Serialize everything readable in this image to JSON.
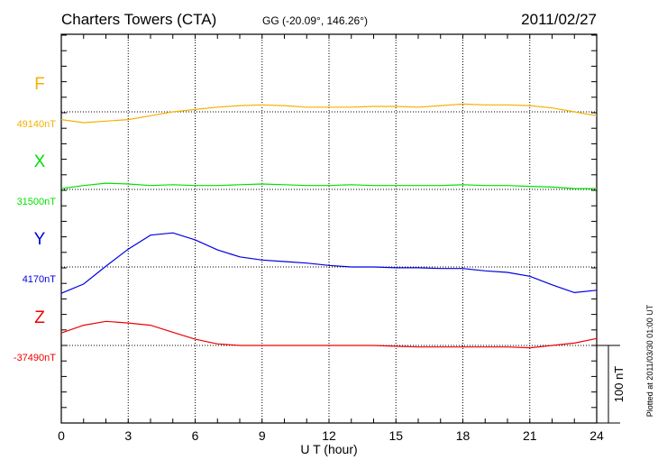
{
  "chart_data": {
    "type": "line",
    "title": "Charters Towers (CTA)",
    "subtitle": "GG (-20.09°, 146.26°)",
    "date": "2011/02/27",
    "xlabel": "U T (hour)",
    "xlim": [
      0,
      24
    ],
    "xticks": [
      "0",
      "3",
      "6",
      "9",
      "12",
      "15",
      "18",
      "21",
      "24"
    ],
    "scale_label": "100 nT",
    "plotted_note": "Plotted at 2011/03/30 01:00 UT",
    "grid": true,
    "x": [
      0,
      1,
      2,
      3,
      4,
      5,
      6,
      7,
      8,
      9,
      10,
      11,
      12,
      13,
      14,
      15,
      16,
      17,
      18,
      19,
      20,
      21,
      22,
      23,
      24
    ],
    "series": [
      {
        "name": "F",
        "baseline_label": "49140nT",
        "color": "#f5b000",
        "values": [
          -10,
          -14,
          -12,
          -10,
          -5,
          0,
          3,
          6,
          8,
          9,
          8,
          6,
          6,
          6,
          7,
          7,
          6,
          8,
          10,
          9,
          9,
          8,
          5,
          0,
          -5
        ]
      },
      {
        "name": "X",
        "baseline_label": "31500nT",
        "color": "#00e000",
        "values": [
          1,
          5,
          8,
          7,
          5,
          6,
          5,
          5,
          6,
          7,
          6,
          5,
          5,
          6,
          5,
          5,
          5,
          5,
          6,
          5,
          5,
          4,
          3,
          1,
          1
        ]
      },
      {
        "name": "Y",
        "baseline_label": "4170nT",
        "color": "#0000e0",
        "values": [
          -34,
          -22,
          1,
          23,
          41,
          44,
          35,
          22,
          13,
          9,
          7,
          5,
          2,
          0,
          0,
          -1,
          -1,
          -2,
          -2,
          -5,
          -7,
          -12,
          -23,
          -33,
          -30
        ]
      },
      {
        "name": "Z",
        "baseline_label": "-37490nT",
        "color": "#f00000",
        "values": [
          16,
          26,
          31,
          29,
          26,
          17,
          8,
          2,
          0,
          0,
          0,
          0,
          0,
          0,
          0,
          -1,
          -2,
          -2,
          -2,
          -2,
          -2,
          -3,
          0,
          3,
          9
        ]
      }
    ]
  }
}
